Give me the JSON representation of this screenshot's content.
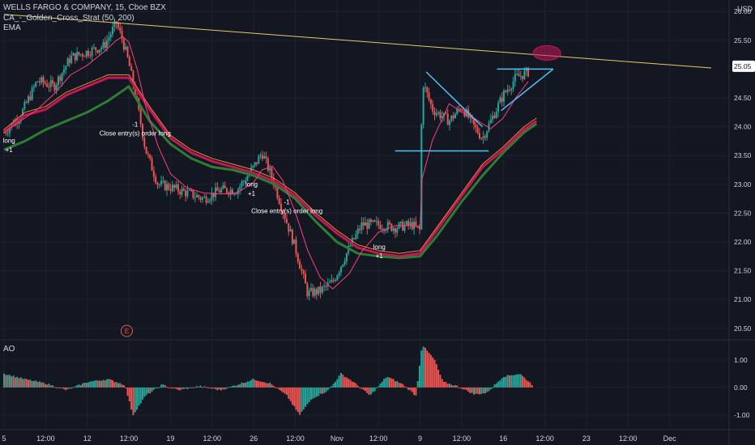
{
  "header": {
    "symbol_title": "WELLS FARGO & COMPANY, 15, Cboe BZX",
    "strategy_label": "CA_-_Golden_Cross_Strat (50, 200)",
    "ema_label": "EMA",
    "currency": "USD",
    "ao_label": "AO"
  },
  "colors": {
    "background": "#131722",
    "grid": "#1e2230",
    "up": "#26a69a",
    "down": "#ef5350",
    "trendline": "#e6c96b",
    "pattern_lines": "#4fc3f7",
    "sma50": "#c2185b",
    "sma200": "#2e7d32",
    "ema_fast": "#ff3d7f",
    "ema_slow": "#f28c28",
    "price_label_bg": "#ffffff",
    "highlight_ellipse": "#c2185b",
    "ao_up": "#26a69a",
    "ao_down": "#ef5350"
  },
  "chart_data": [
    {
      "type": "candlestick",
      "title": "WELLS FARGO & COMPANY, 15, Cboe BZX",
      "x_ticks": [
        "5",
        "12:00",
        "12",
        "12:00",
        "19",
        "12:00",
        "26",
        "12:00",
        "Nov",
        "12:00",
        "9",
        "12:00",
        "16",
        "12:00",
        "23",
        "12:00",
        "Dec"
      ],
      "y_ticks": [
        "26.00",
        "25.50",
        "25.05",
        "24.50",
        "24.00",
        "23.50",
        "23.00",
        "22.50",
        "22.00",
        "21.50",
        "21.00",
        "20.50"
      ],
      "ylim": [
        20.3,
        26.2
      ],
      "current_price": 25.05,
      "x_range": [
        0,
        17
      ],
      "close_path": [
        [
          0,
          23.9
        ],
        [
          0.4,
          24.2
        ],
        [
          0.8,
          24.8
        ],
        [
          1.2,
          24.7
        ],
        [
          1.6,
          25.2
        ],
        [
          2.0,
          25.3
        ],
        [
          2.4,
          25.4
        ],
        [
          2.7,
          25.8
        ],
        [
          2.85,
          25.5
        ],
        [
          3.0,
          25.1
        ],
        [
          3.2,
          24.4
        ],
        [
          3.4,
          23.6
        ],
        [
          3.7,
          23.0
        ],
        [
          4.0,
          22.95
        ],
        [
          4.4,
          22.85
        ],
        [
          4.8,
          22.75
        ],
        [
          5.2,
          22.9
        ],
        [
          5.6,
          22.9
        ],
        [
          6.0,
          23.3
        ],
        [
          6.2,
          23.55
        ],
        [
          6.45,
          23.1
        ],
        [
          6.7,
          22.55
        ],
        [
          7.0,
          21.9
        ],
        [
          7.3,
          21.1
        ],
        [
          7.6,
          21.15
        ],
        [
          7.9,
          21.3
        ],
        [
          8.3,
          21.9
        ],
        [
          8.6,
          22.3
        ],
        [
          9.0,
          22.3
        ],
        [
          9.4,
          22.25
        ],
        [
          9.8,
          22.3
        ],
        [
          10.0,
          22.2
        ],
        [
          10.05,
          24.8
        ],
        [
          10.3,
          24.3
        ],
        [
          10.7,
          24.1
        ],
        [
          11.0,
          24.35
        ],
        [
          11.3,
          24.0
        ],
        [
          11.5,
          23.8
        ],
        [
          11.7,
          24.1
        ],
        [
          12.0,
          24.55
        ],
        [
          12.3,
          24.85
        ],
        [
          12.6,
          24.95
        ]
      ],
      "sma50": [
        [
          0,
          23.9
        ],
        [
          0.5,
          24.2
        ],
        [
          1,
          24.3
        ],
        [
          1.5,
          24.55
        ],
        [
          2,
          24.7
        ],
        [
          2.5,
          24.85
        ],
        [
          3,
          24.85
        ],
        [
          3.5,
          24.3
        ],
        [
          4,
          23.8
        ],
        [
          4.5,
          23.55
        ],
        [
          5,
          23.4
        ],
        [
          5.5,
          23.3
        ],
        [
          6,
          23.2
        ],
        [
          6.5,
          23.05
        ],
        [
          7,
          22.8
        ],
        [
          7.5,
          22.45
        ],
        [
          8,
          22.15
        ],
        [
          8.5,
          21.9
        ],
        [
          9,
          21.8
        ],
        [
          9.5,
          21.75
        ],
        [
          10,
          21.8
        ],
        [
          10.4,
          22.2
        ],
        [
          11,
          22.8
        ],
        [
          11.5,
          23.3
        ],
        [
          12,
          23.6
        ],
        [
          12.5,
          23.95
        ],
        [
          12.8,
          24.1
        ]
      ],
      "sma200": [
        [
          0,
          23.6
        ],
        [
          0.5,
          23.75
        ],
        [
          1,
          23.95
        ],
        [
          1.5,
          24.1
        ],
        [
          2,
          24.25
        ],
        [
          2.5,
          24.45
        ],
        [
          3,
          24.7
        ],
        [
          3.5,
          24.1
        ],
        [
          4,
          23.7
        ],
        [
          4.5,
          23.45
        ],
        [
          5,
          23.3
        ],
        [
          5.5,
          23.25
        ],
        [
          6,
          23.15
        ],
        [
          6.5,
          23.0
        ],
        [
          7,
          22.75
        ],
        [
          7.5,
          22.35
        ],
        [
          8,
          22.0
        ],
        [
          8.5,
          21.8
        ],
        [
          9,
          21.75
        ],
        [
          9.5,
          21.72
        ],
        [
          10,
          21.75
        ],
        [
          10.4,
          22.1
        ],
        [
          11,
          22.7
        ],
        [
          11.5,
          23.15
        ],
        [
          12,
          23.55
        ],
        [
          12.5,
          23.9
        ],
        [
          12.8,
          24.05
        ]
      ],
      "trendline": [
        [
          0,
          25.95
        ],
        [
          17,
          25.02
        ]
      ],
      "triangle_1": {
        "top": [
          [
            10.15,
            24.95
          ],
          [
            11.5,
            24.0
          ]
        ],
        "base": [
          [
            9.4,
            23.58
          ],
          [
            11.65,
            23.58
          ]
        ]
      },
      "triangle_2": {
        "top": [
          [
            11.85,
            25.0
          ],
          [
            13.2,
            25.0
          ]
        ],
        "bottom": [
          [
            11.95,
            24.28
          ],
          [
            13.2,
            25.0
          ]
        ]
      },
      "highlight_at": [
        13.05,
        25.28
      ],
      "annotations": [
        {
          "text": "long",
          "x": 0.12,
          "y": 23.72
        },
        {
          "text": "+1",
          "x": 0.12,
          "y": 23.56
        },
        {
          "text": "-1",
          "x": 3.15,
          "y": 24.0
        },
        {
          "text": "Close entry(s) order long",
          "x": 3.15,
          "y": 23.85
        },
        {
          "text": "long",
          "x": 5.95,
          "y": 22.96
        },
        {
          "text": "+1",
          "x": 5.95,
          "y": 22.8
        },
        {
          "text": "-1",
          "x": 6.8,
          "y": 22.65
        },
        {
          "text": "Close entry(s) order long",
          "x": 6.8,
          "y": 22.5
        },
        {
          "text": "long",
          "x": 9.02,
          "y": 21.87
        },
        {
          "text": "+1",
          "x": 9.02,
          "y": 21.72
        }
      ],
      "event_marker": "E"
    },
    {
      "type": "bar",
      "title": "AO",
      "y_ticks": [
        "1.00",
        "0.00",
        "-1.00"
      ],
      "ylim": [
        -1.5,
        1.7
      ],
      "values_path": [
        [
          0,
          0.5
        ],
        [
          0.5,
          0.3
        ],
        [
          1,
          0.15
        ],
        [
          1.5,
          -0.1
        ],
        [
          2,
          0.2
        ],
        [
          2.5,
          0.3
        ],
        [
          2.9,
          0.1
        ],
        [
          3.1,
          -1.0
        ],
        [
          3.4,
          -0.3
        ],
        [
          3.8,
          0.1
        ],
        [
          4.2,
          -0.1
        ],
        [
          4.7,
          0.05
        ],
        [
          5.2,
          -0.1
        ],
        [
          5.6,
          0.1
        ],
        [
          6.0,
          0.3
        ],
        [
          6.4,
          0.15
        ],
        [
          6.8,
          -0.3
        ],
        [
          7.1,
          -1.0
        ],
        [
          7.4,
          -0.4
        ],
        [
          7.8,
          -0.1
        ],
        [
          8.1,
          0.5
        ],
        [
          8.4,
          0.2
        ],
        [
          8.8,
          -0.3
        ],
        [
          9.2,
          0.4
        ],
        [
          9.6,
          0.1
        ],
        [
          9.9,
          -0.3
        ],
        [
          10.05,
          1.55
        ],
        [
          10.35,
          1.0
        ],
        [
          10.55,
          0.2
        ],
        [
          10.9,
          0.05
        ],
        [
          11.3,
          -0.25
        ],
        [
          11.6,
          -0.2
        ],
        [
          12.0,
          0.4
        ],
        [
          12.4,
          0.5
        ],
        [
          12.7,
          0.1
        ]
      ]
    }
  ]
}
